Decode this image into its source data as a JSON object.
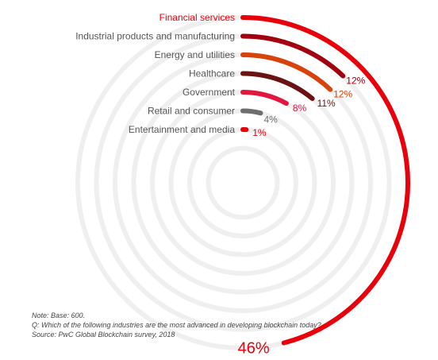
{
  "chart_data": {
    "type": "radial_bar",
    "categories": [
      "Financial services",
      "Industrial products and manufacturing",
      "Energy and utilities",
      "Healthcare",
      "Government",
      "Retail and consumer",
      "Entertainment and media"
    ],
    "values": [
      46,
      12,
      12,
      11,
      8,
      4,
      1
    ],
    "value_labels": [
      "46%",
      "12%",
      "12%",
      "11%",
      "8%",
      "4%",
      "1%"
    ],
    "unit": "%",
    "colors": [
      "#e8000b",
      "#a3000f",
      "#d9420b",
      "#6b1313",
      "#e3173e",
      "#6e6e6e",
      "#e8000b"
    ],
    "background_rings": true
  },
  "notes": {
    "base": "Note: Base: 600.",
    "question": "Q: Which of the following industries are the most advanced in developing blockchain today?",
    "source": "Source: PwC Global Blockchain survey, 2018"
  }
}
